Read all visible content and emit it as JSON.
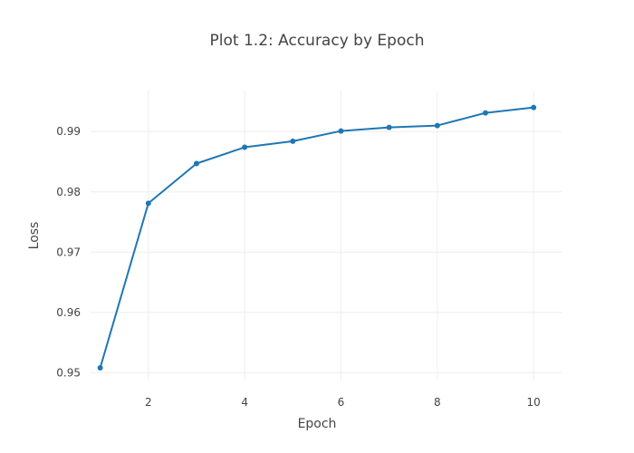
{
  "chart_data": {
    "type": "line",
    "title": "Plot 1.2: Accuracy by Epoch",
    "xlabel": "Epoch",
    "ylabel": "Loss",
    "x": [
      1,
      2,
      3,
      4,
      5,
      6,
      7,
      8,
      9,
      10
    ],
    "series": [
      {
        "values": [
          0.9508,
          0.9781,
          0.9847,
          0.9874,
          0.9884,
          0.9901,
          0.9907,
          0.991,
          0.9931,
          0.994
        ],
        "color": "#1f77b4"
      }
    ],
    "xlim": [
      0.8,
      10.58
    ],
    "ylim": [
      0.9487,
      0.9968
    ],
    "xticks": [
      2,
      4,
      6,
      8,
      10
    ],
    "xtick_labels": [
      "2",
      "4",
      "6",
      "8",
      "10"
    ],
    "yticks": [
      0.95,
      0.96,
      0.97,
      0.98,
      0.99
    ],
    "ytick_labels": [
      "0.95",
      "0.96",
      "0.97",
      "0.98",
      "0.99"
    ],
    "grid": true,
    "markers": true,
    "background": "#ffffff",
    "grid_color": "#eeeeee",
    "text_color": "#444444"
  }
}
